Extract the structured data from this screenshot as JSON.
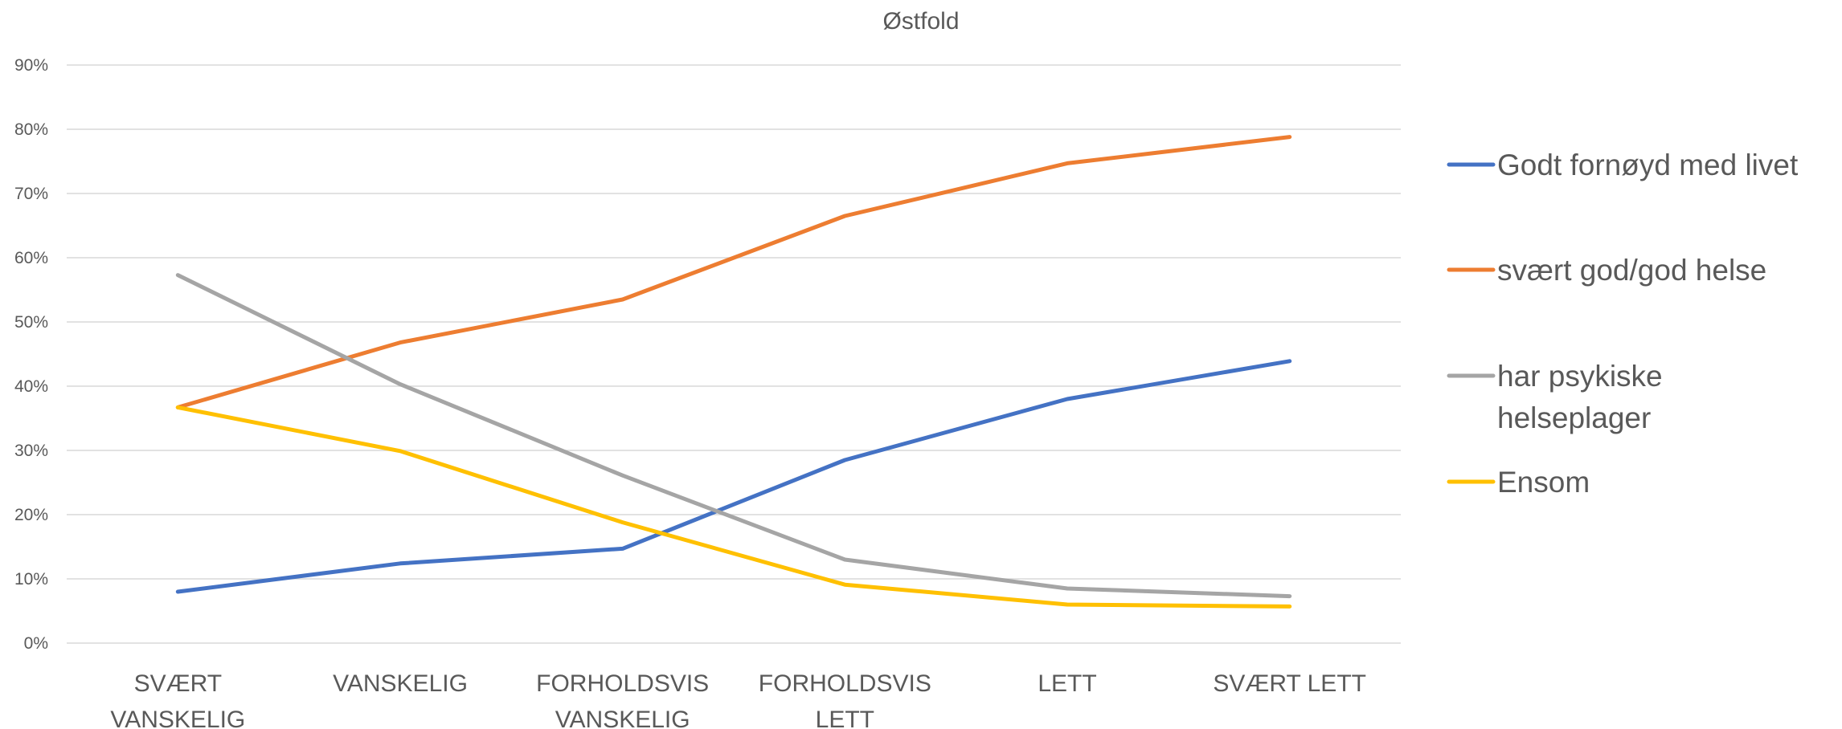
{
  "chart_data": {
    "type": "line",
    "title": "Østfold",
    "xlabel": "",
    "ylabel": "",
    "ylim": [
      0,
      0.9
    ],
    "ytick_step": 0.1,
    "ytick_format": "percent",
    "grid": true,
    "legend_position": "right",
    "categories": [
      [
        "SVÆRT",
        "VANSKELIG"
      ],
      [
        "VANSKELIG"
      ],
      [
        "FORHOLDSVIS",
        "VANSKELIG"
      ],
      [
        "FORHOLDSVIS",
        "LETT"
      ],
      [
        "LETT"
      ],
      [
        "SVÆRT LETT"
      ]
    ],
    "series": [
      {
        "name": "Godt fornøyd med livet",
        "name_lines": [
          "Godt fornøyd med livet"
        ],
        "color": "#4472C4",
        "values": [
          0.08,
          0.124,
          0.147,
          0.285,
          0.38,
          0.439
        ]
      },
      {
        "name": "svært god/god helse",
        "name_lines": [
          "svært god/god helse"
        ],
        "color": "#ED7D31",
        "values": [
          0.367,
          0.468,
          0.535,
          0.665,
          0.747,
          0.788
        ]
      },
      {
        "name": "har psykiske helseplager",
        "name_lines": [
          "har psykiske",
          "helseplager"
        ],
        "color": "#A5A5A5",
        "values": [
          0.573,
          0.403,
          0.261,
          0.13,
          0.085,
          0.073
        ]
      },
      {
        "name": "Ensom",
        "name_lines": [
          "Ensom"
        ],
        "color": "#FFC000",
        "values": [
          0.367,
          0.299,
          0.188,
          0.091,
          0.06,
          0.057
        ]
      }
    ]
  }
}
